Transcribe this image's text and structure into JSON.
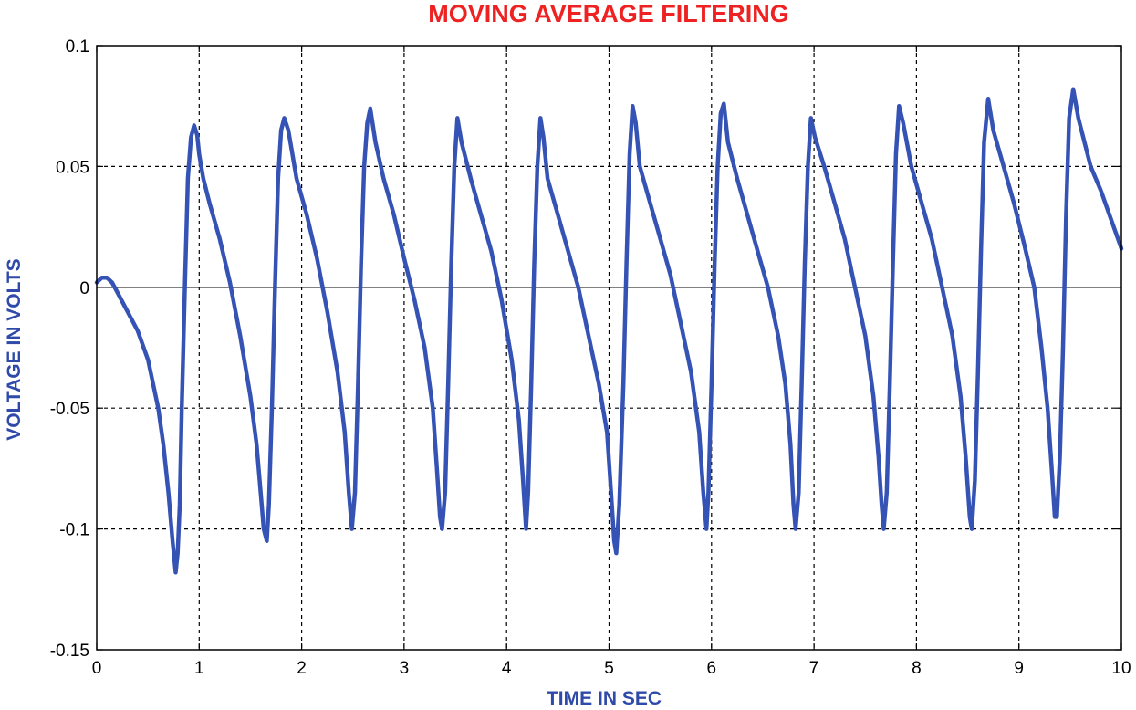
{
  "colors": {
    "title": "#ee2222",
    "axis_label": "#2f4aa8",
    "series": "#3553b5",
    "grid": "#000000",
    "frame": "#000000"
  },
  "chart_data": {
    "type": "line",
    "title": "MOVING AVERAGE FILTERING",
    "xlabel": "TIME IN SEC",
    "ylabel": "VOLTAGE IN VOLTS",
    "xlim": [
      0,
      10
    ],
    "ylim": [
      -0.15,
      0.1
    ],
    "xticks": [
      0,
      1,
      2,
      3,
      4,
      5,
      6,
      7,
      8,
      9,
      10
    ],
    "xtick_labels": [
      "0",
      "1",
      "2",
      "3",
      "4",
      "5",
      "6",
      "7",
      "8",
      "9",
      "10"
    ],
    "yticks": [
      0.1,
      0.05,
      0,
      -0.05,
      -0.1,
      -0.15
    ],
    "ytick_labels": [
      "0.1",
      "0.05",
      "0",
      "-0.05",
      "-0.1",
      "-0.15"
    ],
    "grid": true,
    "zero_line": true,
    "series": [
      {
        "x": [
          0,
          0.05,
          0.1,
          0.15,
          0.2,
          0.3,
          0.4,
          0.5,
          0.6,
          0.65,
          0.7,
          0.74,
          0.77,
          0.79,
          0.81,
          0.83,
          0.86,
          0.89,
          0.92,
          0.95,
          0.98,
          1.0,
          1.04,
          1.1,
          1.2,
          1.3,
          1.4,
          1.5,
          1.56,
          1.6,
          1.63,
          1.66,
          1.68,
          1.71,
          1.74,
          1.77,
          1.8,
          1.83,
          1.87,
          1.95,
          2.05,
          2.15,
          2.25,
          2.35,
          2.42,
          2.46,
          2.49,
          2.52,
          2.55,
          2.58,
          2.61,
          2.64,
          2.67,
          2.72,
          2.8,
          2.9,
          3.0,
          3.1,
          3.2,
          3.28,
          3.32,
          3.35,
          3.37,
          3.4,
          3.43,
          3.46,
          3.49,
          3.52,
          3.56,
          3.65,
          3.75,
          3.85,
          3.95,
          4.05,
          4.12,
          4.16,
          4.19,
          4.21,
          4.24,
          4.27,
          4.3,
          4.33,
          4.36,
          4.4,
          4.5,
          4.6,
          4.7,
          4.8,
          4.9,
          4.98,
          5.02,
          5.05,
          5.07,
          5.1,
          5.14,
          5.17,
          5.2,
          5.23,
          5.26,
          5.3,
          5.4,
          5.5,
          5.6,
          5.7,
          5.8,
          5.88,
          5.92,
          5.95,
          5.97,
          6.0,
          6.03,
          6.06,
          6.09,
          6.12,
          6.16,
          6.25,
          6.35,
          6.45,
          6.55,
          6.65,
          6.72,
          6.77,
          6.8,
          6.82,
          6.85,
          6.88,
          6.91,
          6.94,
          6.97,
          7.01,
          7.1,
          7.2,
          7.3,
          7.4,
          7.5,
          7.58,
          7.63,
          7.66,
          7.68,
          7.71,
          7.74,
          7.77,
          7.8,
          7.83,
          7.87,
          7.95,
          8.05,
          8.15,
          8.25,
          8.35,
          8.43,
          8.48,
          8.52,
          8.54,
          8.57,
          8.6,
          8.63,
          8.66,
          8.7,
          8.75,
          8.85,
          8.95,
          9.05,
          9.15,
          9.22,
          9.28,
          9.32,
          9.35,
          9.37,
          9.4,
          9.43,
          9.46,
          9.49,
          9.53,
          9.58,
          9.7,
          9.8,
          9.9,
          10.0
        ],
        "values": [
          0.002,
          0.004,
          0.004,
          0.002,
          -0.002,
          -0.01,
          -0.018,
          -0.03,
          -0.05,
          -0.065,
          -0.085,
          -0.105,
          -0.118,
          -0.11,
          -0.09,
          -0.05,
          0.0,
          0.045,
          0.062,
          0.067,
          0.063,
          0.055,
          0.045,
          0.035,
          0.02,
          0.002,
          -0.02,
          -0.045,
          -0.065,
          -0.085,
          -0.1,
          -0.105,
          -0.09,
          -0.05,
          0.0,
          0.045,
          0.065,
          0.07,
          0.065,
          0.045,
          0.03,
          0.012,
          -0.01,
          -0.035,
          -0.06,
          -0.085,
          -0.1,
          -0.085,
          -0.04,
          0.01,
          0.05,
          0.068,
          0.074,
          0.06,
          0.045,
          0.03,
          0.012,
          -0.005,
          -0.025,
          -0.05,
          -0.075,
          -0.095,
          -0.1,
          -0.085,
          -0.04,
          0.01,
          0.05,
          0.07,
          0.06,
          0.045,
          0.03,
          0.015,
          -0.005,
          -0.03,
          -0.055,
          -0.08,
          -0.1,
          -0.085,
          -0.04,
          0.01,
          0.05,
          0.07,
          0.062,
          0.045,
          0.03,
          0.015,
          0.0,
          -0.02,
          -0.04,
          -0.06,
          -0.085,
          -0.105,
          -0.11,
          -0.09,
          -0.04,
          0.01,
          0.055,
          0.075,
          0.068,
          0.05,
          0.035,
          0.02,
          0.005,
          -0.015,
          -0.035,
          -0.06,
          -0.085,
          -0.1,
          -0.085,
          -0.04,
          0.01,
          0.05,
          0.072,
          0.076,
          0.06,
          0.045,
          0.03,
          0.015,
          0.0,
          -0.02,
          -0.04,
          -0.065,
          -0.09,
          -0.1,
          -0.085,
          -0.04,
          0.01,
          0.05,
          0.07,
          0.062,
          0.05,
          0.035,
          0.02,
          0.0,
          -0.02,
          -0.045,
          -0.07,
          -0.09,
          -0.1,
          -0.085,
          -0.04,
          0.01,
          0.055,
          0.075,
          0.068,
          0.05,
          0.035,
          0.02,
          0.0,
          -0.02,
          -0.045,
          -0.07,
          -0.095,
          -0.1,
          -0.08,
          -0.035,
          0.015,
          0.06,
          0.078,
          0.065,
          0.05,
          0.035,
          0.018,
          0.0,
          -0.025,
          -0.05,
          -0.075,
          -0.095,
          -0.095,
          -0.07,
          -0.025,
          0.03,
          0.07,
          0.082,
          0.07,
          0.05,
          0.04,
          0.028,
          0.016
        ]
      }
    ]
  }
}
